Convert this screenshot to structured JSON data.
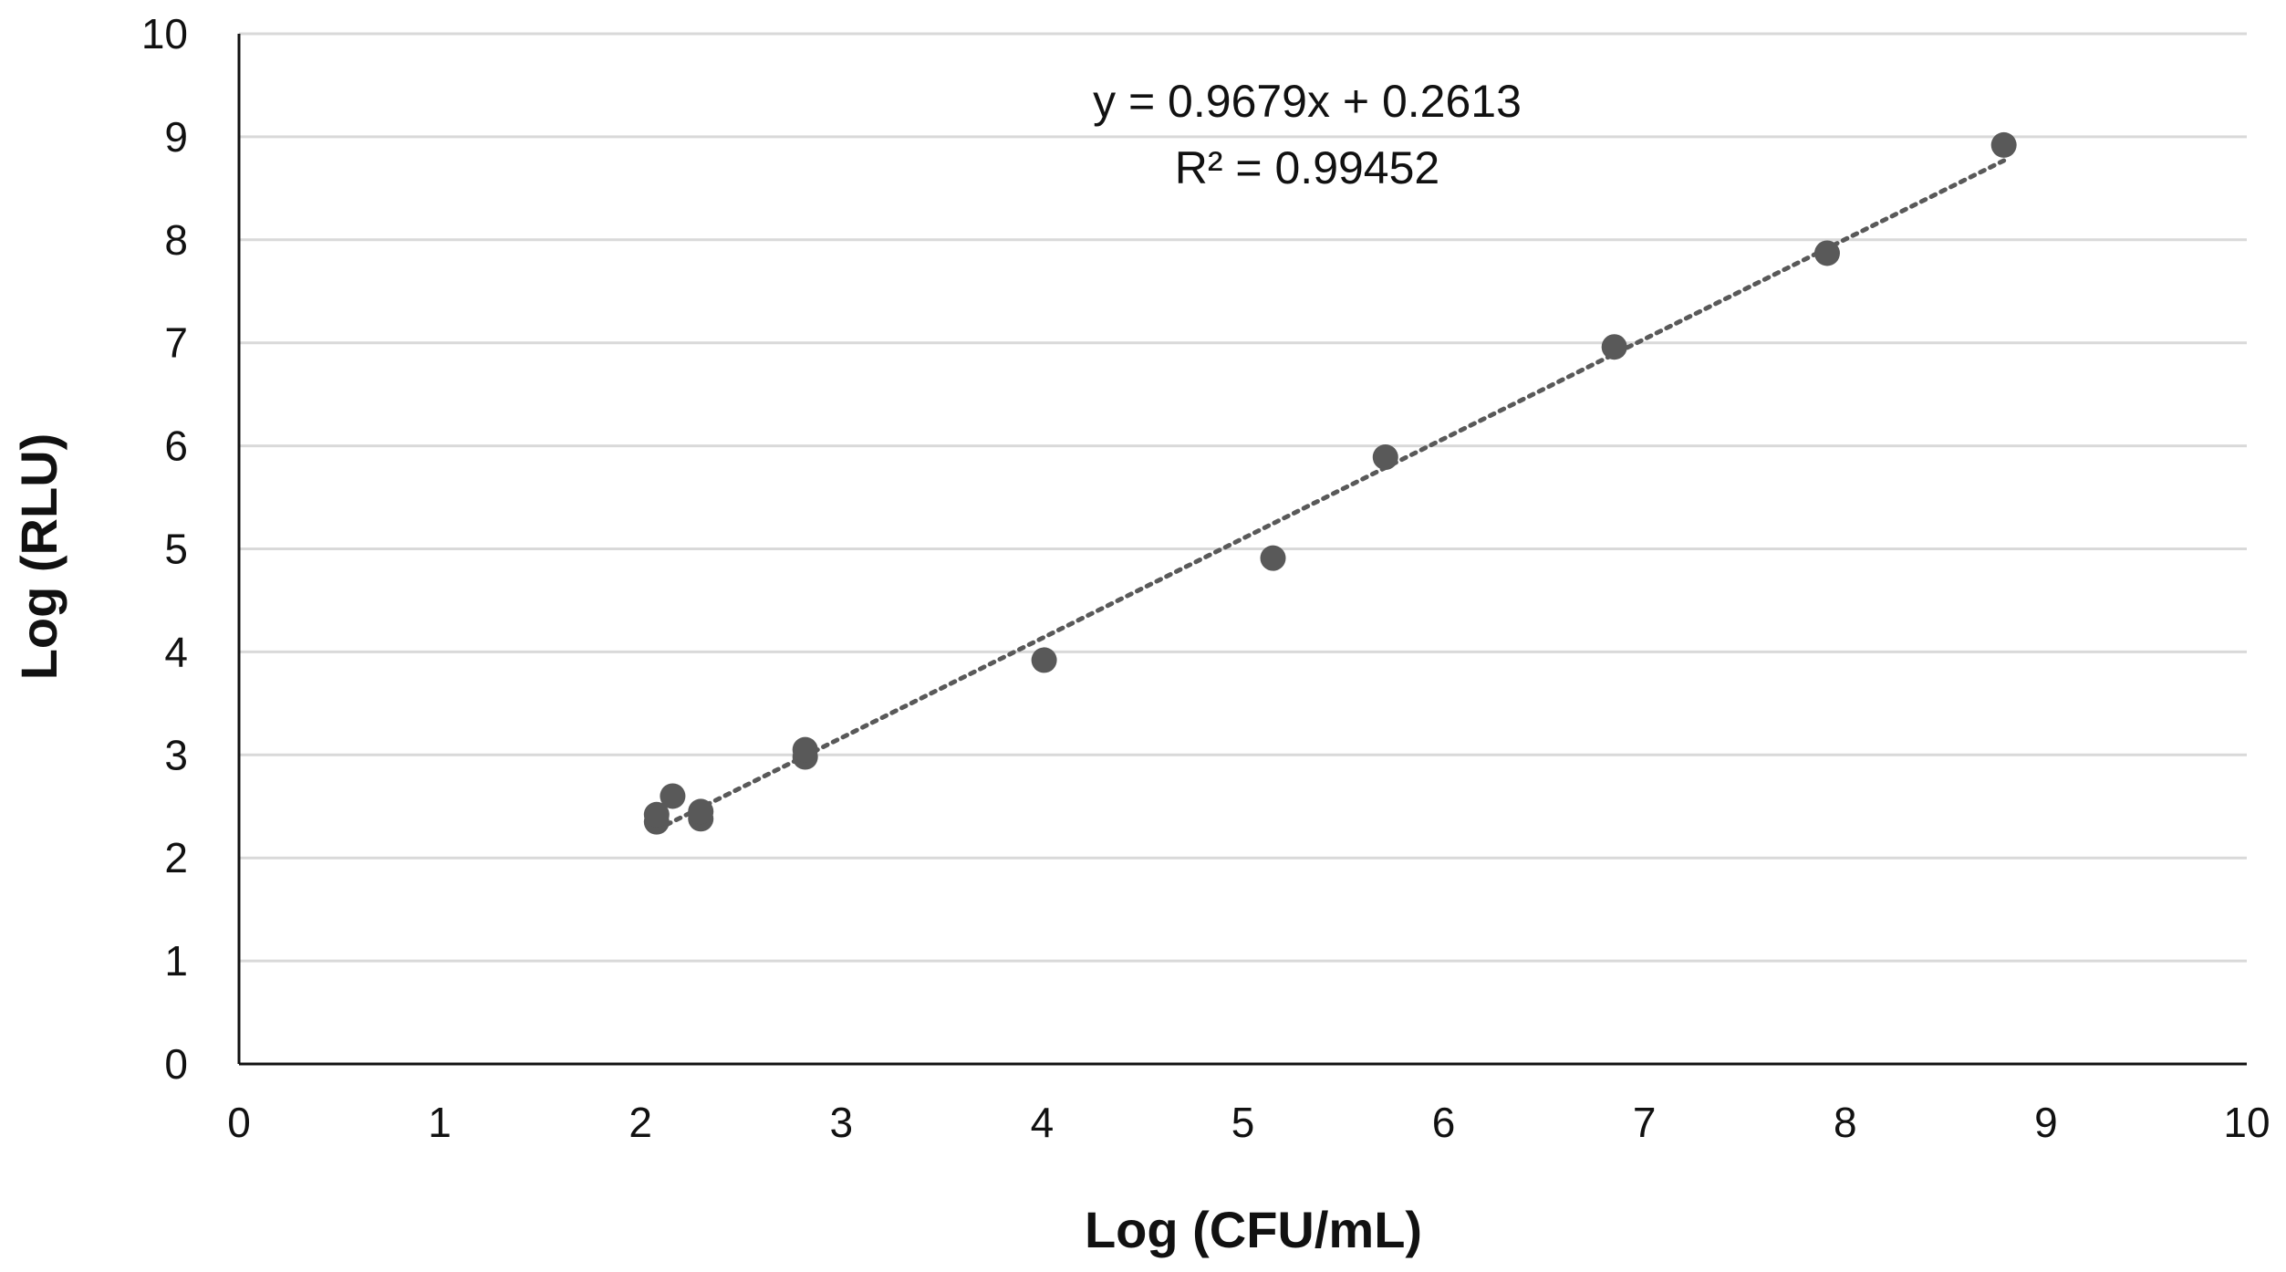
{
  "chart_data": {
    "type": "scatter",
    "title": "",
    "xlabel": "Log (CFU/mL)",
    "ylabel": "Log (RLU)",
    "xlim": [
      0,
      10
    ],
    "ylim": [
      0,
      10
    ],
    "x_ticks": [
      "0",
      "1",
      "2",
      "3",
      "4",
      "5",
      "6",
      "7",
      "8",
      "9",
      "10"
    ],
    "y_ticks": [
      "0",
      "1",
      "2",
      "3",
      "4",
      "5",
      "6",
      "7",
      "8",
      "9",
      "10"
    ],
    "grid": "horizontal",
    "legend": "none",
    "series": [
      {
        "points": [
          {
            "x": 2.08,
            "y": 2.35
          },
          {
            "x": 2.08,
            "y": 2.42
          },
          {
            "x": 2.16,
            "y": 2.6
          },
          {
            "x": 2.3,
            "y": 2.38
          },
          {
            "x": 2.3,
            "y": 2.45
          },
          {
            "x": 2.82,
            "y": 2.98
          },
          {
            "x": 2.82,
            "y": 3.05
          },
          {
            "x": 4.01,
            "y": 3.92
          },
          {
            "x": 5.15,
            "y": 4.91
          },
          {
            "x": 5.71,
            "y": 5.89
          },
          {
            "x": 6.85,
            "y": 6.96
          },
          {
            "x": 7.91,
            "y": 7.87
          },
          {
            "x": 8.79,
            "y": 8.92
          }
        ],
        "color": "#595959"
      }
    ],
    "trendline": {
      "slope": 0.9679,
      "intercept": 0.2613,
      "x_range": [
        2.08,
        8.79
      ],
      "style": "dotted",
      "color": "#595959",
      "equation_label": "y = 0.9679x + 0.2613",
      "r2_label": "R² = 0.99452"
    },
    "colors": {
      "axis": "#111111",
      "grid": "#d9d9d9"
    }
  }
}
